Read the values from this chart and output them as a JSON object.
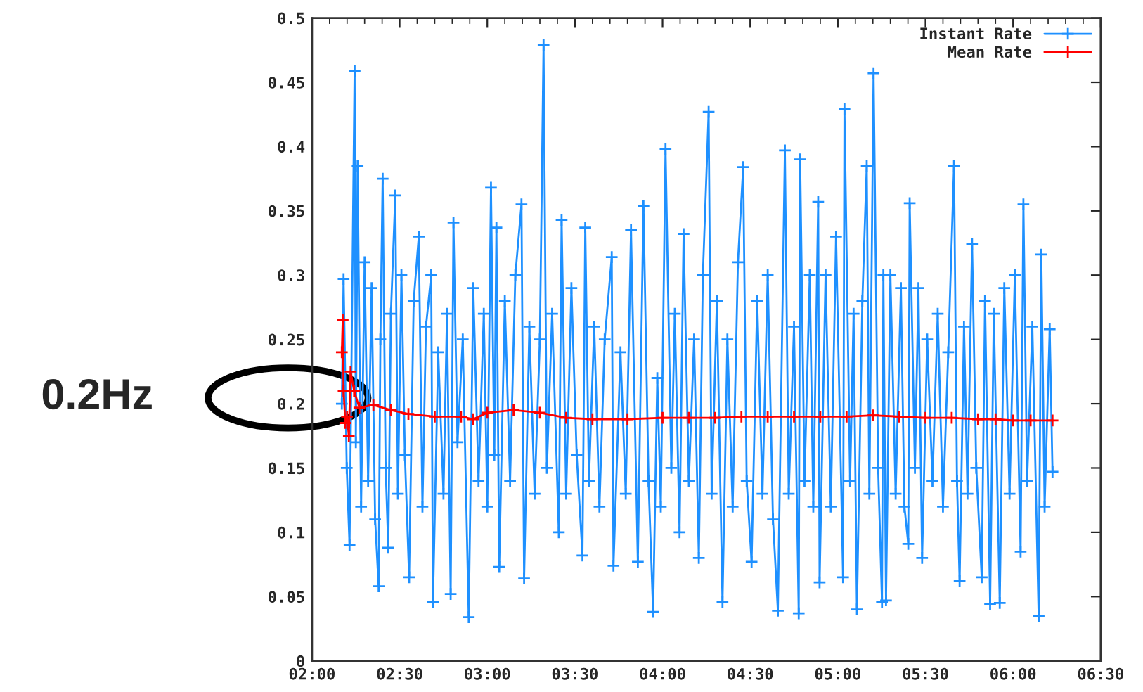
{
  "chart_data": {
    "type": "line",
    "xlim": [
      2,
      6.5
    ],
    "xticks": [
      {
        "value": 2,
        "label": "02:00"
      },
      {
        "value": 2.5,
        "label": "02:30"
      },
      {
        "value": 3,
        "label": "03:00"
      },
      {
        "value": 3.5,
        "label": "03:30"
      },
      {
        "value": 4,
        "label": "04:00"
      },
      {
        "value": 4.5,
        "label": "04:30"
      },
      {
        "value": 5,
        "label": "05:00"
      },
      {
        "value": 5.5,
        "label": "05:30"
      },
      {
        "value": 6,
        "label": "06:00"
      },
      {
        "value": 6.5,
        "label": "06:30"
      }
    ],
    "ylim": [
      0,
      0.5
    ],
    "yticks": [
      {
        "value": 0,
        "label": "0"
      },
      {
        "value": 0.05,
        "label": "0.05"
      },
      {
        "value": 0.1,
        "label": "0.1"
      },
      {
        "value": 0.15,
        "label": "0.15"
      },
      {
        "value": 0.2,
        "label": "0.2"
      },
      {
        "value": 0.25,
        "label": "0.25"
      },
      {
        "value": 0.3,
        "label": "0.3"
      },
      {
        "value": 0.35,
        "label": "0.35"
      },
      {
        "value": 0.4,
        "label": "0.4"
      },
      {
        "value": 0.45,
        "label": "0.45"
      },
      {
        "value": 0.5,
        "label": "0.5"
      }
    ],
    "grid": false,
    "legend": "top right",
    "marker": "cross",
    "line_style": "solid",
    "annotations": [
      "0.2Hz"
    ],
    "series": [
      {
        "name": "Instant Rate",
        "color": "#1e90ff",
        "x": [
          2.17,
          2.18,
          2.198,
          2.214,
          2.243,
          2.25,
          2.26,
          2.28,
          2.3,
          2.32,
          2.34,
          2.36,
          2.38,
          2.39,
          2.403,
          2.42,
          2.435,
          2.45,
          2.475,
          2.49,
          2.51,
          2.53,
          2.554,
          2.58,
          2.609,
          2.63,
          2.65,
          2.68,
          2.69,
          2.72,
          2.75,
          2.77,
          2.791,
          2.807,
          2.83,
          2.86,
          2.894,
          2.92,
          2.95,
          2.98,
          3.0,
          3.021,
          3.04,
          3.052,
          3.068,
          3.1,
          3.13,
          3.16,
          3.195,
          3.21,
          3.24,
          3.27,
          3.3,
          3.321,
          3.34,
          3.37,
          3.408,
          3.424,
          3.45,
          3.48,
          3.51,
          3.543,
          3.559,
          3.58,
          3.61,
          3.64,
          3.67,
          3.71,
          3.72,
          3.76,
          3.79,
          3.82,
          3.859,
          3.891,
          3.92,
          3.946,
          3.97,
          3.99,
          4.017,
          4.05,
          4.07,
          4.097,
          4.12,
          4.15,
          4.18,
          4.207,
          4.23,
          4.263,
          4.28,
          4.31,
          4.342,
          4.37,
          4.4,
          4.43,
          4.46,
          4.48,
          4.508,
          4.54,
          4.57,
          4.6,
          4.63,
          4.658,
          4.698,
          4.72,
          4.75,
          4.777,
          4.785,
          4.81,
          4.84,
          4.86,
          4.888,
          4.896,
          4.93,
          4.96,
          4.99,
          5.03,
          5.038,
          5.07,
          5.09,
          5.109,
          5.14,
          5.165,
          5.18,
          5.204,
          5.23,
          5.252,
          5.26,
          5.275,
          5.3,
          5.33,
          5.36,
          5.38,
          5.402,
          5.41,
          5.44,
          5.46,
          5.481,
          5.51,
          5.54,
          5.57,
          5.6,
          5.63,
          5.663,
          5.68,
          5.695,
          5.72,
          5.74,
          5.766,
          5.79,
          5.821,
          5.84,
          5.869,
          5.89,
          5.924,
          5.95,
          5.98,
          6.01,
          6.043,
          6.059,
          6.08,
          6.11,
          6.146,
          6.161,
          6.18,
          6.209,
          6.225
        ],
        "values": [
          0.2,
          0.297,
          0.15,
          0.09,
          0.459,
          0.17,
          0.385,
          0.12,
          0.31,
          0.14,
          0.29,
          0.11,
          0.058,
          0.25,
          0.375,
          0.15,
          0.088,
          0.27,
          0.362,
          0.13,
          0.3,
          0.16,
          0.065,
          0.28,
          0.33,
          0.12,
          0.26,
          0.3,
          0.046,
          0.24,
          0.13,
          0.27,
          0.052,
          0.341,
          0.17,
          0.25,
          0.034,
          0.29,
          0.14,
          0.27,
          0.12,
          0.368,
          0.16,
          0.337,
          0.073,
          0.28,
          0.14,
          0.3,
          0.355,
          0.064,
          0.26,
          0.13,
          0.25,
          0.479,
          0.15,
          0.27,
          0.1,
          0.343,
          0.13,
          0.29,
          0.16,
          0.082,
          0.337,
          0.14,
          0.26,
          0.12,
          0.25,
          0.314,
          0.074,
          0.24,
          0.13,
          0.335,
          0.077,
          0.354,
          0.14,
          0.038,
          0.22,
          0.12,
          0.398,
          0.15,
          0.27,
          0.1,
          0.332,
          0.14,
          0.25,
          0.08,
          0.3,
          0.427,
          0.13,
          0.28,
          0.046,
          0.25,
          0.12,
          0.31,
          0.384,
          0.14,
          0.077,
          0.28,
          0.13,
          0.3,
          0.11,
          0.039,
          0.397,
          0.13,
          0.26,
          0.037,
          0.39,
          0.14,
          0.3,
          0.12,
          0.357,
          0.061,
          0.3,
          0.12,
          0.33,
          0.065,
          0.429,
          0.14,
          0.27,
          0.04,
          0.28,
          0.385,
          0.13,
          0.457,
          0.15,
          0.046,
          0.3,
          0.047,
          0.3,
          0.13,
          0.29,
          0.12,
          0.091,
          0.356,
          0.15,
          0.29,
          0.08,
          0.25,
          0.14,
          0.27,
          0.12,
          0.24,
          0.385,
          0.14,
          0.062,
          0.26,
          0.13,
          0.324,
          0.15,
          0.065,
          0.28,
          0.044,
          0.27,
          0.045,
          0.29,
          0.13,
          0.3,
          0.085,
          0.355,
          0.14,
          0.26,
          0.035,
          0.316,
          0.12,
          0.258,
          0.147
        ]
      },
      {
        "name": "Mean Rate",
        "color": "#ff0000",
        "x": [
          2.17,
          2.175,
          2.18,
          2.19,
          2.2,
          2.21,
          2.22,
          2.24,
          2.27,
          2.35,
          2.45,
          2.55,
          2.7,
          2.85,
          2.92,
          3.0,
          3.15,
          3.3,
          3.45,
          3.6,
          3.8,
          4.0,
          4.15,
          4.3,
          4.45,
          4.6,
          4.75,
          4.9,
          5.05,
          5.2,
          5.35,
          5.5,
          5.65,
          5.8,
          5.9,
          6.0,
          6.1,
          6.225
        ],
        "values": [
          0.24,
          0.265,
          0.21,
          0.185,
          0.19,
          0.175,
          0.225,
          0.21,
          0.197,
          0.199,
          0.195,
          0.192,
          0.19,
          0.19,
          0.188,
          0.193,
          0.195,
          0.193,
          0.189,
          0.188,
          0.188,
          0.189,
          0.189,
          0.189,
          0.19,
          0.19,
          0.19,
          0.19,
          0.19,
          0.191,
          0.19,
          0.189,
          0.189,
          0.188,
          0.188,
          0.187,
          0.187,
          0.187
        ]
      }
    ]
  }
}
